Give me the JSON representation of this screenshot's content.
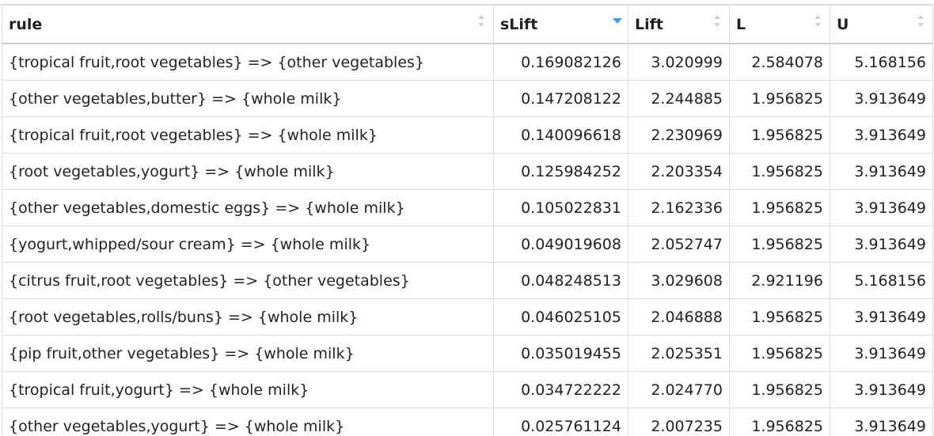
{
  "columns": [
    {
      "key": "rule",
      "label": "rule",
      "sort": "none"
    },
    {
      "key": "slift",
      "label": "sLift",
      "sort": "desc"
    },
    {
      "key": "lift",
      "label": "Lift",
      "sort": "none"
    },
    {
      "key": "l",
      "label": "L",
      "sort": "none"
    },
    {
      "key": "u",
      "label": "U",
      "sort": "none"
    }
  ],
  "colors": {
    "sort_active": "#3b99fc",
    "sort_inactive": "#d0d0d0",
    "border": "#dcdcdc"
  },
  "rows": [
    {
      "rule": "{tropical fruit,root vegetables} => {other vegetables}",
      "slift": "0.169082126",
      "lift": "3.020999",
      "l": "2.584078",
      "u": "5.168156"
    },
    {
      "rule": "{other vegetables,butter} => {whole milk}",
      "slift": "0.147208122",
      "lift": "2.244885",
      "l": "1.956825",
      "u": "3.913649"
    },
    {
      "rule": "{tropical fruit,root vegetables} => {whole milk}",
      "slift": "0.140096618",
      "lift": "2.230969",
      "l": "1.956825",
      "u": "3.913649"
    },
    {
      "rule": "{root vegetables,yogurt} => {whole milk}",
      "slift": "0.125984252",
      "lift": "2.203354",
      "l": "1.956825",
      "u": "3.913649"
    },
    {
      "rule": "{other vegetables,domestic eggs} => {whole milk}",
      "slift": "0.105022831",
      "lift": "2.162336",
      "l": "1.956825",
      "u": "3.913649"
    },
    {
      "rule": "{yogurt,whipped/sour cream} => {whole milk}",
      "slift": "0.049019608",
      "lift": "2.052747",
      "l": "1.956825",
      "u": "3.913649"
    },
    {
      "rule": "{citrus fruit,root vegetables} => {other vegetables}",
      "slift": "0.048248513",
      "lift": "3.029608",
      "l": "2.921196",
      "u": "5.168156"
    },
    {
      "rule": "{root vegetables,rolls/buns} => {whole milk}",
      "slift": "0.046025105",
      "lift": "2.046888",
      "l": "1.956825",
      "u": "3.913649"
    },
    {
      "rule": "{pip fruit,other vegetables} => {whole milk}",
      "slift": "0.035019455",
      "lift": "2.025351",
      "l": "1.956825",
      "u": "3.913649"
    },
    {
      "rule": "{tropical fruit,yogurt} => {whole milk}",
      "slift": "0.034722222",
      "lift": "2.024770",
      "l": "1.956825",
      "u": "3.913649"
    },
    {
      "rule": "{other vegetables,yogurt} => {whole milk}",
      "slift": "0.025761124",
      "lift": "2.007235",
      "l": "1.956825",
      "u": "3.913649"
    }
  ]
}
